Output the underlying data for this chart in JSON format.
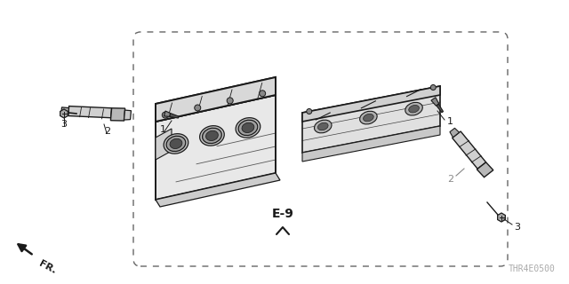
{
  "background_color": "#ffffff",
  "diagram_code": "E-9",
  "part_number": "THR4E0500",
  "line_color": "#1a1a1a",
  "dark_color": "#222222",
  "gray_color": "#888888",
  "dashed_color": "#666666",
  "label_color": "#000000",
  "part_number_color": "#aaaaaa",
  "labels_left": [
    "1",
    "2",
    "3"
  ],
  "labels_right": [
    "1",
    "2",
    "3"
  ],
  "fr_text": "FR."
}
